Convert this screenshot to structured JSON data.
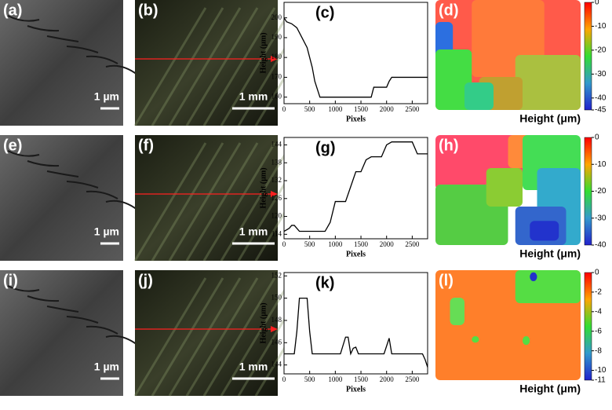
{
  "chart_data": [
    {
      "type": "line",
      "label": "(c)",
      "x_label": "Pixels",
      "y_label": "Height (μm)",
      "x": [
        0,
        50,
        150,
        250,
        350,
        450,
        550,
        600,
        700,
        1000,
        1500,
        1700,
        1750,
        2000,
        2050,
        2100,
        2800
      ],
      "series": [
        {
          "color": "#000000",
          "values": [
            200,
            198,
            197,
            195,
            190,
            185,
            175,
            168,
            160,
            160,
            160,
            160,
            165,
            165,
            168,
            170,
            170
          ]
        }
      ],
      "xlim": [
        0,
        2800
      ],
      "ylim": [
        156.7,
        207.8
      ],
      "xticks": [
        0,
        500,
        1000,
        1500,
        2000,
        2500
      ],
      "yticks": [
        160,
        170,
        180,
        190,
        200
      ]
    },
    {
      "type": "line",
      "label": "(g)",
      "x_label": "Pixels",
      "y_label": "Height (μm)",
      "x": [
        0,
        100,
        150,
        200,
        250,
        300,
        800,
        900,
        1000,
        1200,
        1300,
        1400,
        1500,
        1600,
        1700,
        1900,
        2000,
        2100,
        2500,
        2600,
        2800
      ],
      "series": [
        {
          "color": "#000000",
          "values": [
            115,
            116,
            117,
            117,
            116,
            115,
            115,
            118,
            125,
            125,
            130,
            135,
            135,
            139,
            140,
            140,
            144,
            145,
            145,
            141,
            141
          ]
        }
      ],
      "xlim": [
        0,
        2800
      ],
      "ylim": [
        112.5,
        146.5
      ],
      "xticks": [
        0,
        500,
        1000,
        1500,
        2000,
        2500
      ],
      "yticks": [
        114,
        120,
        126,
        132,
        138,
        144
      ]
    },
    {
      "type": "line",
      "label": "(k)",
      "x_label": "Pixels",
      "y_label": "Height (μm)",
      "x": [
        0,
        200,
        250,
        300,
        450,
        500,
        550,
        1100,
        1200,
        1250,
        1300,
        1350,
        1400,
        1450,
        1950,
        2050,
        2100,
        2700,
        2750,
        2800
      ],
      "series": [
        {
          "color": "#000000",
          "values": [
            145,
            145,
            147,
            150,
            150,
            147,
            145,
            145,
            146.5,
            146.5,
            145,
            145.5,
            145.6,
            145,
            145,
            146.4,
            145,
            145,
            144.5,
            143.8
          ]
        }
      ],
      "xlim": [
        0,
        2800
      ],
      "ylim": [
        143.2,
        152.3
      ],
      "xticks": [
        0,
        500,
        1000,
        1500,
        2000,
        2500
      ],
      "yticks": [
        144,
        146,
        148,
        150,
        152
      ]
    }
  ],
  "panels": {
    "sem": [
      {
        "label": "(a)",
        "scale": "1 µm"
      },
      {
        "label": "(e)",
        "scale": "1 µm"
      },
      {
        "label": "(i)",
        "scale": "1 µm"
      }
    ],
    "optical": [
      {
        "label": "(b)",
        "scale": "1 mm"
      },
      {
        "label": "(f)",
        "scale": "1 mm"
      },
      {
        "label": "(j)",
        "scale": "1 mm"
      }
    ],
    "maps": [
      {
        "label": "(d)",
        "caption": "Height (μm)",
        "colorbar_lim": [
          -45,
          0
        ],
        "colorbar_ticks": [
          0,
          -10,
          -20,
          -30,
          -40,
          -45
        ]
      },
      {
        "label": "(h)",
        "caption": "Height (μm)",
        "colorbar_lim": [
          -40,
          0
        ],
        "colorbar_ticks": [
          0,
          -10,
          -20,
          -30,
          -40
        ]
      },
      {
        "label": "(l)",
        "caption": "Height (μm)",
        "colorbar_lim": [
          -11,
          0
        ],
        "colorbar_ticks": [
          0,
          -2,
          -4,
          -6,
          -8,
          -10,
          -11
        ]
      }
    ]
  }
}
